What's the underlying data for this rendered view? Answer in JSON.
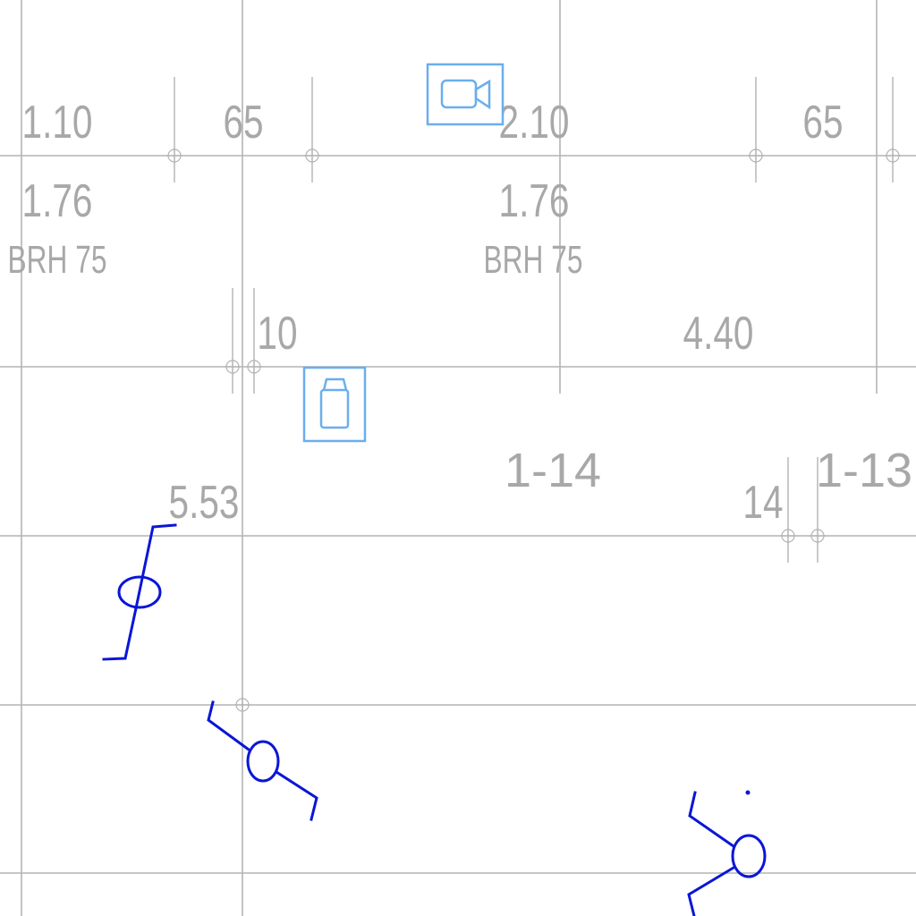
{
  "labels": {
    "w1": "1.10",
    "w2": "65",
    "w3": "2.10",
    "w4": "65",
    "h1": "1.76",
    "h2": "1.76",
    "brh1": "BRH 75",
    "brh2": "BRH 75",
    "d10": "10",
    "d440": "4.40",
    "d553": "5.53",
    "room114": "1-14",
    "d14": "14",
    "room113": "1-13"
  },
  "icons": {
    "camera": "video-camera-icon",
    "bin": "waste-bin-icon"
  },
  "colors": {
    "grid": "#b4b4b4",
    "dimension_text": "#a8a8a8",
    "marker": "#0a16d6",
    "badge": "#6aaeee"
  }
}
